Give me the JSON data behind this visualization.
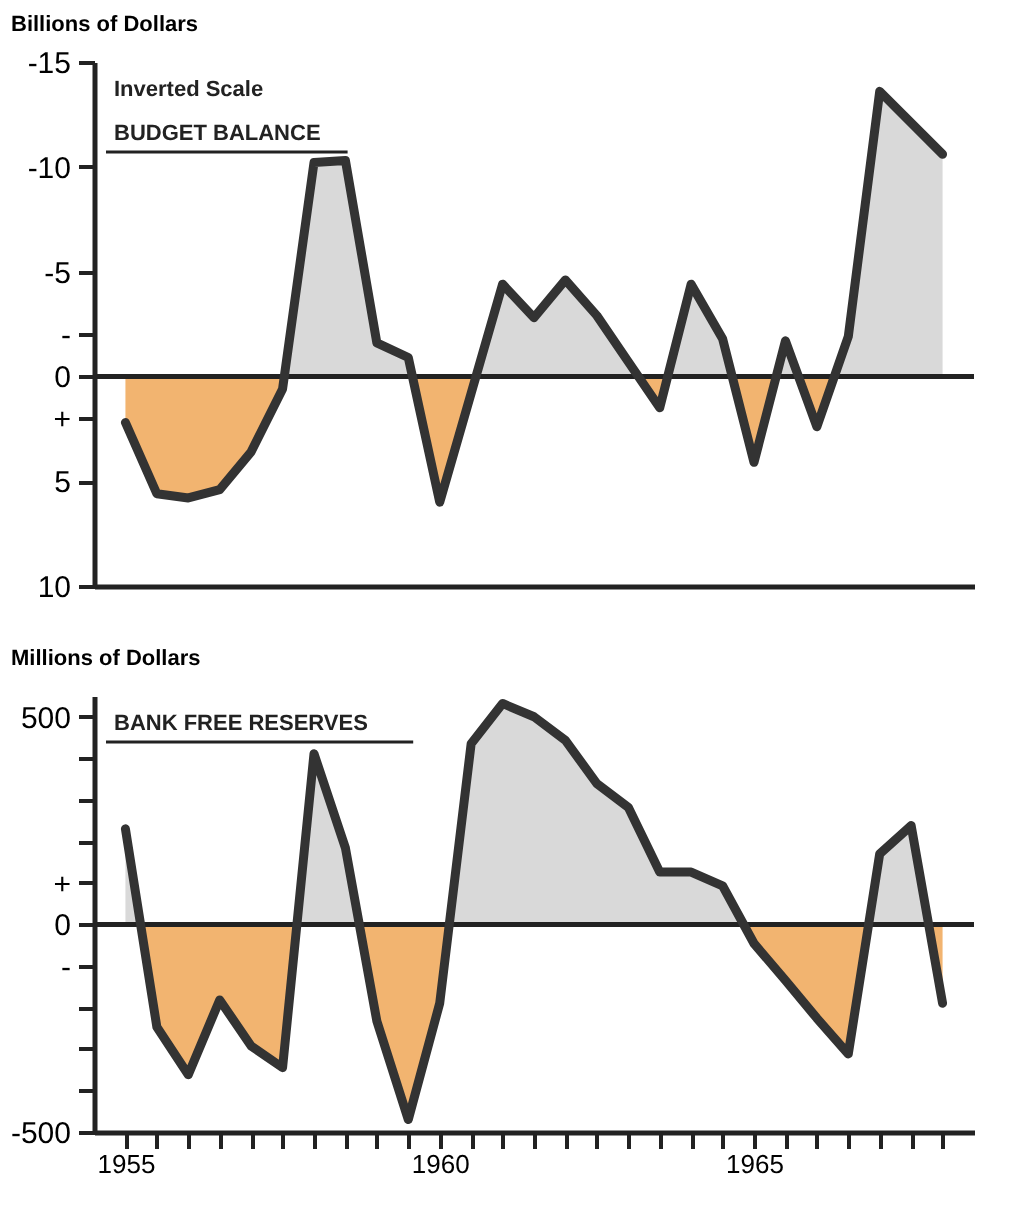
{
  "chart_data": [
    {
      "type": "area",
      "ylabel": "Billions of Dollars",
      "annotations": [
        "Inverted Scale",
        "BUDGET BALANCE"
      ],
      "x": [
        1955,
        1955.5,
        1956,
        1956.5,
        1957,
        1957.5,
        1958,
        1958.5,
        1959,
        1959.5,
        1960,
        1960.5,
        1961,
        1961.5,
        1962,
        1962.5,
        1963,
        1963.5,
        1964,
        1964.5,
        1965,
        1965.5,
        1966,
        1966.5,
        1967,
        1968
      ],
      "series": [
        {
          "color": "#333333",
          "values": [
            2.2,
            5.6,
            5.8,
            5.4,
            3.6,
            0.6,
            -10.2,
            -10.3,
            -1.6,
            -0.9,
            6.0,
            0.8,
            -4.4,
            -2.8,
            -4.6,
            -2.9,
            -0.7,
            1.5,
            -4.4,
            -1.8,
            4.1,
            -1.7,
            2.4,
            -1.9,
            -13.6,
            -10.6
          ]
        }
      ],
      "colors": [
        "#d9d9d9",
        "#f2b470"
      ],
      "ref_lines": [
        {
          "axis": "y",
          "value": 0,
          "color": "#222222"
        }
      ],
      "xlim": [
        1954.5,
        1968.5
      ],
      "ylim": [
        10,
        -15
      ],
      "yticks": [
        -15,
        -10,
        -5,
        {
          "value": -2,
          "label": "-"
        },
        0,
        {
          "value": 2,
          "label": "+"
        },
        5,
        10
      ],
      "tick_labels": "y",
      "grid": false
    },
    {
      "type": "area",
      "ylabel": "Millions of Dollars",
      "annotations": [
        "BANK FREE RESERVES"
      ],
      "x": [
        1955,
        1955.5,
        1956,
        1956.5,
        1957,
        1957.5,
        1958,
        1958.5,
        1959,
        1959.5,
        1960,
        1960.5,
        1961,
        1961.5,
        1962,
        1962.5,
        1963,
        1963.5,
        1964,
        1964.5,
        1965,
        1965.5,
        1966,
        1966.5,
        1967,
        1967.5,
        1968
      ],
      "series": [
        {
          "color": "#333333",
          "values": [
            230,
            -247,
            -362,
            -182,
            -293,
            -345,
            411,
            184,
            -233,
            -470,
            -190,
            435,
            532,
            500,
            443,
            339,
            282,
            126,
            126,
            93,
            -46,
            -135,
            -226,
            -312,
            170,
            238,
            -190
          ]
        }
      ],
      "colors": [
        "#d9d9d9",
        "#f2b470"
      ],
      "ref_lines": [
        {
          "axis": "y",
          "value": 0,
          "color": "#222222"
        }
      ],
      "xlim": [
        1954.5,
        1968.5
      ],
      "ylim": [
        -500,
        550
      ],
      "xticks": [
        1955,
        {
          "value": 1955.5,
          "label": null
        },
        {
          "value": 1956,
          "label": null
        },
        {
          "value": 1956.5,
          "label": null
        },
        {
          "value": 1957,
          "label": null
        },
        {
          "value": 1957.5,
          "label": null
        },
        {
          "value": 1958,
          "label": null
        },
        {
          "value": 1958.5,
          "label": null
        },
        {
          "value": 1959,
          "label": null
        },
        {
          "value": 1959.5,
          "label": null
        },
        1960,
        {
          "value": 1960.5,
          "label": null
        },
        {
          "value": 1961,
          "label": null
        },
        {
          "value": 1961.5,
          "label": null
        },
        {
          "value": 1962,
          "label": null
        },
        {
          "value": 1962.5,
          "label": null
        },
        {
          "value": 1963,
          "label": null
        },
        {
          "value": 1963.5,
          "label": null
        },
        {
          "value": 1964,
          "label": null
        },
        {
          "value": 1964.5,
          "label": null
        },
        1965,
        {
          "value": 1965.5,
          "label": null
        },
        {
          "value": 1966,
          "label": null
        },
        {
          "value": 1966.5,
          "label": null
        },
        {
          "value": 1967,
          "label": null
        },
        {
          "value": 1967.5,
          "label": null
        },
        {
          "value": 1968,
          "label": null
        }
      ],
      "yticks": [
        -500,
        {
          "value": -400,
          "label": null
        },
        {
          "value": -300,
          "label": null
        },
        {
          "value": -200,
          "label": null
        },
        {
          "value": -100,
          "label": "-"
        },
        0,
        {
          "value": 100,
          "label": "+"
        },
        {
          "value": 200,
          "label": null
        },
        {
          "value": 300,
          "label": null
        },
        {
          "value": 400,
          "label": null
        },
        500
      ],
      "grid": false
    }
  ]
}
